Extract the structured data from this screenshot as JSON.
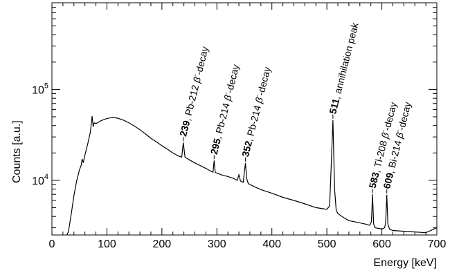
{
  "chart_data": {
    "type": "line",
    "xlabel": "Energy [keV]",
    "ylabel": "Counts [a.u.]",
    "xlim": [
      0,
      700
    ],
    "ylim": [
      2500,
      900000
    ],
    "y_scale": "log",
    "grid": false,
    "x_ticks": [
      "0",
      "100",
      "200",
      "300",
      "400",
      "500",
      "600",
      "700"
    ],
    "y_ticks": [
      {
        "base": "10",
        "exp": "4",
        "value": 10000
      },
      {
        "base": "10",
        "exp": "5",
        "value": 100000
      }
    ],
    "series": [
      {
        "color": "#000000",
        "x": [
          27,
          30,
          35,
          40,
          45,
          50,
          53,
          55,
          57,
          60,
          65,
          70,
          73,
          75,
          77,
          80,
          85,
          90,
          95,
          100,
          105,
          110,
          115,
          120,
          130,
          140,
          150,
          160,
          170,
          180,
          190,
          200,
          210,
          220,
          230,
          236,
          239,
          242,
          245,
          250,
          260,
          270,
          280,
          290,
          293,
          295,
          297,
          300,
          310,
          320,
          330,
          337,
          340,
          343,
          348,
          350,
          352,
          354,
          357,
          360,
          370,
          380,
          400,
          420,
          440,
          460,
          480,
          490,
          500,
          505,
          508,
          511,
          514,
          517,
          520,
          530,
          540,
          550,
          560,
          570,
          578,
          581,
          583,
          585,
          588,
          595,
          600,
          605,
          607,
          609,
          611,
          614,
          620,
          640,
          660,
          680,
          700
        ],
        "y": [
          2500,
          2700,
          4200,
          6800,
          9800,
          13000,
          14500,
          17200,
          15600,
          19000,
          25000,
          34000,
          51000,
          39000,
          43000,
          42000,
          43800,
          45500,
          46800,
          47800,
          48500,
          49000,
          48800,
          48200,
          46000,
          43000,
          39500,
          36000,
          32500,
          29000,
          26500,
          24000,
          22000,
          20000,
          18500,
          18000,
          26000,
          18000,
          17500,
          16800,
          15500,
          14500,
          13500,
          12500,
          12300,
          16500,
          12200,
          12000,
          11400,
          11000,
          10500,
          10000,
          11500,
          9800,
          9500,
          12500,
          15500,
          10500,
          9200,
          9000,
          8400,
          7900,
          7200,
          6500,
          6000,
          5500,
          5000,
          4900,
          4800,
          5200,
          15000,
          46000,
          8000,
          4700,
          4300,
          3900,
          3600,
          3500,
          3400,
          3300,
          3200,
          3500,
          7000,
          3300,
          3000,
          2950,
          2900,
          3000,
          3400,
          6900,
          3300,
          2900,
          2800,
          2750,
          2700,
          2650,
          3000
        ]
      }
    ],
    "annotations": [
      {
        "energy": "239",
        "label": ", Pb-212 ",
        "greek": "β",
        "sup": "-",
        "tail": "-decay",
        "x": 239,
        "peak": 26000
      },
      {
        "energy": "295",
        "label": ", Pb-214 ",
        "greek": "β",
        "sup": "-",
        "tail": "-decay",
        "x": 295,
        "peak": 16500
      },
      {
        "energy": "352",
        "label": ", Pb-214 ",
        "greek": "β",
        "sup": "-",
        "tail": "-decay",
        "x": 352,
        "peak": 15500
      },
      {
        "energy": "511",
        "label": ", annihilation peak",
        "greek": "",
        "sup": "",
        "tail": "",
        "x": 511,
        "peak": 46000
      },
      {
        "energy": "583",
        "label": ", Tl-208 ",
        "greek": "β",
        "sup": "-",
        "tail": "-decay",
        "x": 583,
        "peak": 7000
      },
      {
        "energy": "609",
        "label": ", Bi-214 ",
        "greek": "β",
        "sup": "-",
        "tail": "-decay",
        "x": 609,
        "peak": 6900
      }
    ]
  }
}
